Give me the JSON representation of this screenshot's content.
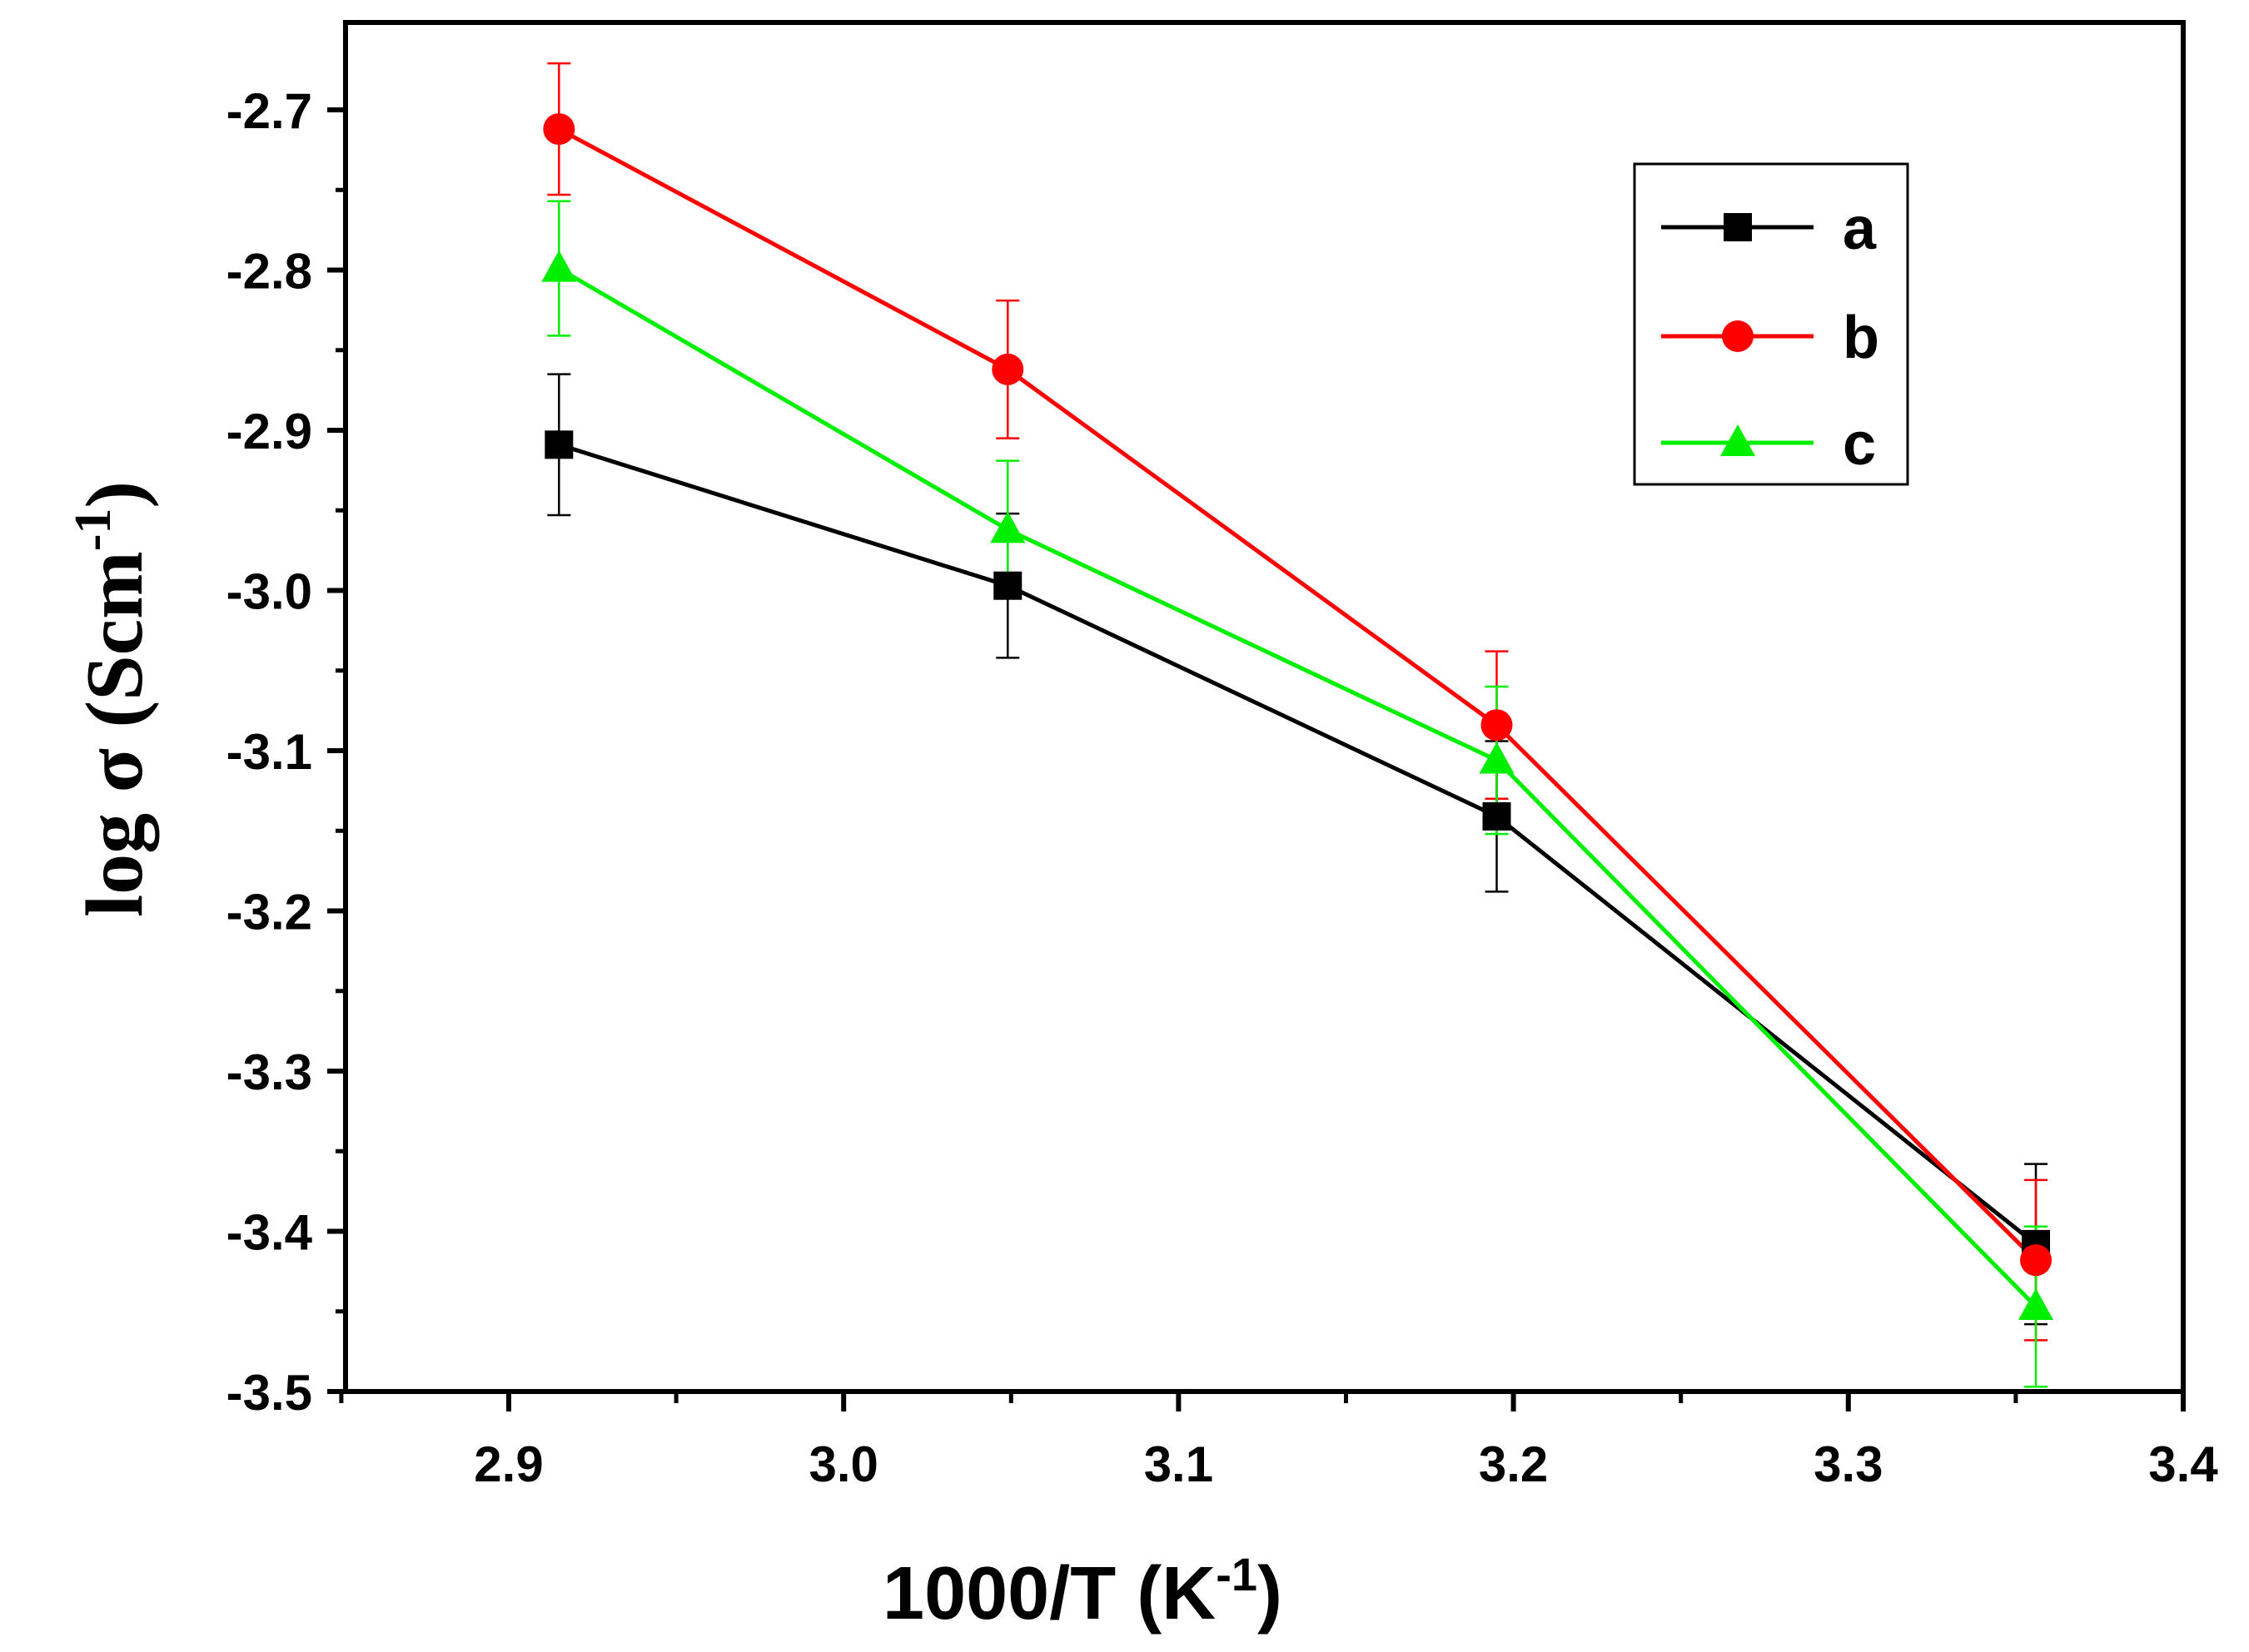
{
  "chart_data": {
    "type": "line",
    "title": "",
    "xlabel": "1000/T (K",
    "xlabel_sup": "-1",
    "xlabel_end": ")",
    "ylabel": "log σ (Scm",
    "ylabel_sup": "-1",
    "ylabel_end": ")",
    "xlim": [
      2.85,
      3.4
    ],
    "ylim": [
      -3.5,
      -2.65
    ],
    "xticks": [
      2.9,
      3.0,
      3.1,
      3.2,
      3.3,
      3.4
    ],
    "xtick_labels": [
      "2.9",
      "3.0",
      "3.1",
      "3.2",
      "3.3",
      "3.4"
    ],
    "yticks": [
      -2.7,
      -2.8,
      -2.9,
      -3.0,
      -3.1,
      -3.2,
      -3.3,
      -3.4,
      -3.5
    ],
    "ytick_labels": [
      "-2.7",
      "-2.8",
      "-2.9",
      "-3.0",
      "-3.1",
      "-3.2",
      "-3.3",
      "-3.4",
      "-3.5"
    ],
    "grid": false,
    "legend_position": "top-right",
    "x": [
      2.915,
      3.049,
      3.195,
      3.356
    ],
    "series": [
      {
        "name": "a",
        "color": "#000000",
        "marker": "square",
        "values": [
          -2.909,
          -2.997,
          -3.141,
          -3.408
        ],
        "errors": [
          0.044,
          0.045,
          0.047,
          0.05
        ]
      },
      {
        "name": "b",
        "color": "#ff0000",
        "marker": "circle",
        "values": [
          -2.712,
          -2.862,
          -3.084,
          -3.418
        ],
        "errors": [
          0.041,
          0.043,
          0.046,
          0.05
        ]
      },
      {
        "name": "c",
        "color": "#00ee00",
        "marker": "triangle",
        "values": [
          -2.799,
          -2.962,
          -3.106,
          -3.447
        ],
        "errors": [
          0.042,
          0.043,
          0.046,
          0.05
        ]
      }
    ]
  }
}
